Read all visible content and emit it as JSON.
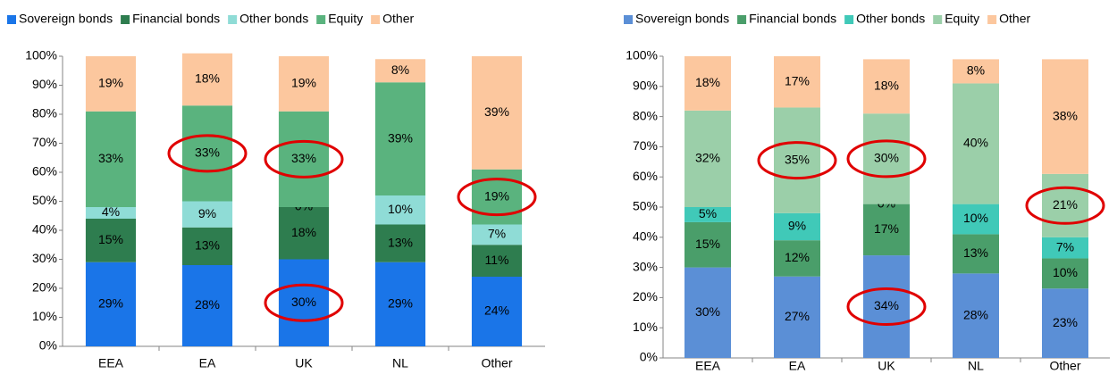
{
  "chart_data": [
    {
      "type": "bar",
      "stacked": true,
      "categories": [
        "EEA",
        "EA",
        "UK",
        "NL",
        "Other"
      ],
      "series": [
        {
          "name": "Sovereign bonds",
          "color": "#1a75e8",
          "values": [
            29,
            28,
            30,
            29,
            24
          ],
          "value_labels": [
            "29%",
            "28%",
            "30%",
            "29%",
            "24%"
          ]
        },
        {
          "name": "Financial bonds",
          "color": "#2e7d4f",
          "values": [
            15,
            13,
            18,
            13,
            11
          ],
          "value_labels": [
            "15%",
            "13%",
            "18%",
            "13%",
            "11%"
          ]
        },
        {
          "name": "Other bonds",
          "color": "#8fdcd6",
          "values": [
            4,
            9,
            0,
            10,
            7
          ],
          "value_labels": [
            "4%",
            "9%",
            "0%",
            "10%",
            "7%"
          ]
        },
        {
          "name": "Equity",
          "color": "#5ab37e",
          "values": [
            33,
            33,
            33,
            39,
            19
          ],
          "value_labels": [
            "33%",
            "33%",
            "33%",
            "39%",
            "19%"
          ]
        },
        {
          "name": "Other",
          "color": "#fcc79e",
          "values": [
            19,
            18,
            19,
            8,
            39
          ],
          "value_labels": [
            "19%",
            "18%",
            "19%",
            "8%",
            "39%"
          ]
        }
      ],
      "ylim": [
        0,
        100
      ],
      "yticks": [
        {
          "value": 0,
          "label": "0%"
        },
        {
          "value": 10,
          "label": "10%"
        },
        {
          "value": 20,
          "label": "20%"
        },
        {
          "value": 30,
          "label": "30%"
        },
        {
          "value": 40,
          "label": "40%"
        },
        {
          "value": 50,
          "label": "50%"
        },
        {
          "value": 60,
          "label": "60%"
        },
        {
          "value": 70,
          "label": "70%"
        },
        {
          "value": 80,
          "label": "80%"
        },
        {
          "value": 90,
          "label": "90%"
        },
        {
          "value": 100,
          "label": "100%"
        }
      ],
      "grid": false,
      "legend": "top"
    },
    {
      "type": "bar",
      "stacked": true,
      "categories": [
        "EEA",
        "EA",
        "UK",
        "NL",
        "Other"
      ],
      "series": [
        {
          "name": "Sovereign bonds",
          "color": "#5b8fd6",
          "values": [
            30,
            27,
            34,
            28,
            23
          ],
          "value_labels": [
            "30%",
            "27%",
            "34%",
            "28%",
            "23%"
          ]
        },
        {
          "name": "Financial bonds",
          "color": "#4a9e6a",
          "values": [
            15,
            12,
            17,
            13,
            10
          ],
          "value_labels": [
            "15%",
            "12%",
            "17%",
            "13%",
            "10%"
          ]
        },
        {
          "name": "Other bonds",
          "color": "#40c9b8",
          "values": [
            5,
            9,
            0,
            10,
            7
          ],
          "value_labels": [
            "5%",
            "9%",
            "0%",
            "10%",
            "7%"
          ]
        },
        {
          "name": "Equity",
          "color": "#9bcfa9",
          "values": [
            32,
            35,
            30,
            40,
            21
          ],
          "value_labels": [
            "32%",
            "35%",
            "30%",
            "40%",
            "21%"
          ]
        },
        {
          "name": "Other",
          "color": "#fcc79e",
          "values": [
            18,
            17,
            18,
            8,
            38
          ],
          "value_labels": [
            "18%",
            "17%",
            "18%",
            "8%",
            "38%"
          ]
        }
      ],
      "ylim": [
        0,
        100
      ],
      "yticks": [
        {
          "value": 0,
          "label": "0%"
        },
        {
          "value": 10,
          "label": "10%"
        },
        {
          "value": 20,
          "label": "20%"
        },
        {
          "value": 30,
          "label": "30%"
        },
        {
          "value": 40,
          "label": "40%"
        },
        {
          "value": 50,
          "label": "50%"
        },
        {
          "value": 60,
          "label": "60%"
        },
        {
          "value": 70,
          "label": "70%"
        },
        {
          "value": 80,
          "label": "80%"
        },
        {
          "value": 90,
          "label": "90%"
        },
        {
          "value": 100,
          "label": "100%"
        }
      ],
      "grid": false,
      "legend": "top"
    }
  ]
}
